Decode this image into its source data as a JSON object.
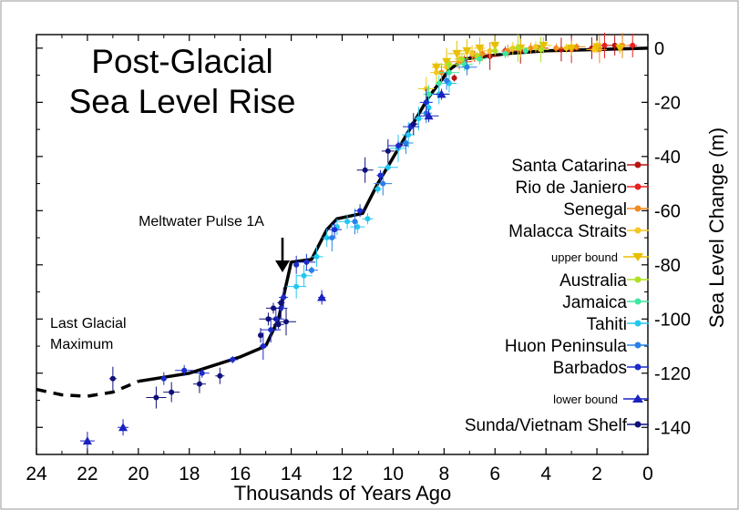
{
  "chart_data": {
    "type": "scatter",
    "title": "Post-Glacial Sea Level Rise",
    "title_lines": [
      "Post-Glacial",
      "Sea Level Rise"
    ],
    "xlabel": "Thousands of Years Ago",
    "ylabel": "Sea Level Change (m)",
    "xlim": [
      24,
      0
    ],
    "ylim": [
      -150,
      5
    ],
    "x_ticks": [
      24,
      22,
      20,
      18,
      16,
      14,
      12,
      10,
      8,
      6,
      4,
      2,
      0
    ],
    "y_ticks": [
      0,
      -20,
      -40,
      -60,
      -80,
      -100,
      -120,
      -140
    ],
    "grid": false,
    "legend_position": "right",
    "annotations": [
      {
        "text": "Meltwater Pulse 1A",
        "arrow": true,
        "x": 14.5,
        "y": -83
      },
      {
        "text_lines": [
          "Last Glacial",
          "Maximum"
        ],
        "x": 22.6,
        "y": -108
      }
    ],
    "reference_curve": {
      "solid": [
        [
          15.0,
          -110
        ],
        [
          14.5,
          -100
        ],
        [
          14.0,
          -79
        ],
        [
          13.2,
          -78
        ],
        [
          12.6,
          -67
        ],
        [
          12.2,
          -63
        ],
        [
          11.2,
          -61
        ],
        [
          10.6,
          -50
        ],
        [
          9.6,
          -34
        ],
        [
          8.6,
          -18
        ],
        [
          7.8,
          -8
        ],
        [
          7.2,
          -4
        ],
        [
          5.5,
          -2
        ],
        [
          4.0,
          -1
        ],
        [
          2.0,
          -0.5
        ],
        [
          0,
          0
        ]
      ],
      "early": [
        [
          20.0,
          -123
        ],
        [
          18.0,
          -120
        ],
        [
          16.0,
          -114
        ],
        [
          15.0,
          -110
        ]
      ],
      "dashed": [
        [
          24.0,
          -126
        ],
        [
          23.0,
          -128
        ],
        [
          22.0,
          -128.5
        ],
        [
          21.0,
          -127
        ],
        [
          20.0,
          -123
        ]
      ]
    },
    "series": [
      {
        "name": "Santa Catarina",
        "color": "#b81414",
        "marker": "circle",
        "points": [
          [
            7.6,
            -11
          ],
          [
            6.2,
            -3
          ],
          [
            5.0,
            -1
          ],
          [
            3.4,
            -0.5
          ],
          [
            2.2,
            0
          ],
          [
            1.3,
            1
          ]
        ]
      },
      {
        "name": "Rio de Janiero",
        "color": "#e82020",
        "marker": "circle",
        "points": [
          [
            7.2,
            -5
          ],
          [
            6.8,
            -3
          ],
          [
            5.6,
            -1
          ],
          [
            4.3,
            0
          ],
          [
            3.0,
            -0.5
          ],
          [
            1.7,
            1
          ],
          [
            0.6,
            1
          ]
        ]
      },
      {
        "name": "Senegal",
        "color": "#f08a1e",
        "marker": "circle",
        "points": [
          [
            8.1,
            -9
          ],
          [
            7.4,
            -5
          ],
          [
            6.5,
            -2
          ],
          [
            5.5,
            -1
          ],
          [
            4.6,
            0
          ],
          [
            3.6,
            0
          ],
          [
            2.8,
            0.5
          ],
          [
            1.9,
            -0.5
          ],
          [
            1.0,
            1
          ]
        ]
      },
      {
        "name": "Malacca Straits",
        "color": "#f5c820",
        "marker": "circle",
        "points": [
          [
            8.7,
            -15
          ],
          [
            8.3,
            -9
          ],
          [
            7.9,
            -7
          ],
          [
            7.4,
            -4
          ],
          [
            6.9,
            -2
          ],
          [
            6.2,
            -1
          ],
          [
            5.3,
            0
          ],
          [
            4.4,
            0.5
          ],
          [
            3.2,
            0
          ],
          [
            2.1,
            -0.5
          ]
        ]
      },
      {
        "name": "upper bound",
        "color": "#e8c000",
        "marker": "triangle-down",
        "points": [
          [
            8.3,
            -7
          ],
          [
            7.9,
            -5
          ],
          [
            7.5,
            -2
          ],
          [
            7.1,
            -1
          ],
          [
            6.6,
            0
          ],
          [
            6.0,
            1
          ],
          [
            5.0,
            0
          ],
          [
            4.1,
            1
          ],
          [
            3.0,
            0
          ],
          [
            2.0,
            0.5
          ],
          [
            1.1,
            0
          ]
        ]
      },
      {
        "name": "Australia",
        "color": "#b0e020",
        "marker": "circle",
        "points": [
          [
            7.8,
            -6
          ],
          [
            7.3,
            -4
          ],
          [
            6.7,
            -3
          ],
          [
            6.0,
            -1
          ],
          [
            5.1,
            0
          ],
          [
            4.2,
            -0.5
          ]
        ]
      },
      {
        "name": "Jamaica",
        "color": "#3ee8a0",
        "marker": "circle",
        "points": [
          [
            8.6,
            -17
          ],
          [
            8.2,
            -13
          ],
          [
            7.8,
            -9
          ],
          [
            7.2,
            -6
          ],
          [
            6.6,
            -4
          ],
          [
            5.6,
            -2
          ],
          [
            4.8,
            -1
          ]
        ]
      },
      {
        "name": "Tahiti",
        "color": "#22c8f0",
        "marker": "circle",
        "points": [
          [
            13.8,
            -88
          ],
          [
            13.5,
            -84
          ],
          [
            13.0,
            -77
          ],
          [
            12.6,
            -70
          ],
          [
            12.2,
            -66
          ],
          [
            11.8,
            -64
          ],
          [
            11.4,
            -66
          ],
          [
            11.0,
            -63
          ],
          [
            10.6,
            -52
          ],
          [
            10.2,
            -44
          ],
          [
            9.8,
            -37
          ],
          [
            9.4,
            -32
          ],
          [
            9.0,
            -26
          ],
          [
            8.6,
            -22
          ],
          [
            8.2,
            -17
          ],
          [
            7.8,
            -13
          ]
        ]
      },
      {
        "name": "Huon Peninsula",
        "color": "#2880e8",
        "marker": "circle",
        "points": [
          [
            13.2,
            -82
          ],
          [
            12.4,
            -70
          ],
          [
            11.5,
            -64
          ],
          [
            10.4,
            -50
          ],
          [
            9.5,
            -35
          ],
          [
            8.7,
            -24
          ],
          [
            7.9,
            -12
          ],
          [
            7.1,
            -7
          ]
        ]
      },
      {
        "name": "Barbados",
        "color": "#1c2ccc",
        "marker": "circle",
        "points": [
          [
            19.0,
            -122
          ],
          [
            18.2,
            -119
          ],
          [
            17.5,
            -120
          ],
          [
            16.3,
            -115
          ],
          [
            15.1,
            -110
          ],
          [
            14.8,
            -104
          ],
          [
            14.6,
            -100
          ],
          [
            14.4,
            -96
          ],
          [
            14.3,
            -92
          ],
          [
            13.8,
            -80
          ],
          [
            13.4,
            -79
          ],
          [
            12.3,
            -67
          ],
          [
            11.3,
            -60
          ],
          [
            10.5,
            -47
          ],
          [
            9.8,
            -36
          ],
          [
            9.3,
            -29
          ],
          [
            8.7,
            -20
          ]
        ]
      },
      {
        "name": "lower bound",
        "color": "#1a22c0",
        "marker": "triangle-up",
        "points": [
          [
            22.0,
            -145
          ],
          [
            20.6,
            -140
          ],
          [
            12.8,
            -92
          ],
          [
            8.6,
            -25
          ],
          [
            8.1,
            -17
          ]
        ]
      },
      {
        "name": "Sunda/Vietnam Shelf",
        "color": "#10107a",
        "marker": "circle",
        "points": [
          [
            21.0,
            -122
          ],
          [
            19.3,
            -129
          ],
          [
            18.7,
            -127
          ],
          [
            17.6,
            -124
          ],
          [
            16.8,
            -121
          ],
          [
            15.2,
            -106
          ],
          [
            14.9,
            -100
          ],
          [
            14.7,
            -96
          ],
          [
            14.5,
            -102
          ],
          [
            14.4,
            -94
          ],
          [
            14.2,
            -101
          ],
          [
            11.1,
            -45
          ],
          [
            10.2,
            -38
          ],
          [
            9.2,
            -28
          ]
        ]
      }
    ]
  }
}
